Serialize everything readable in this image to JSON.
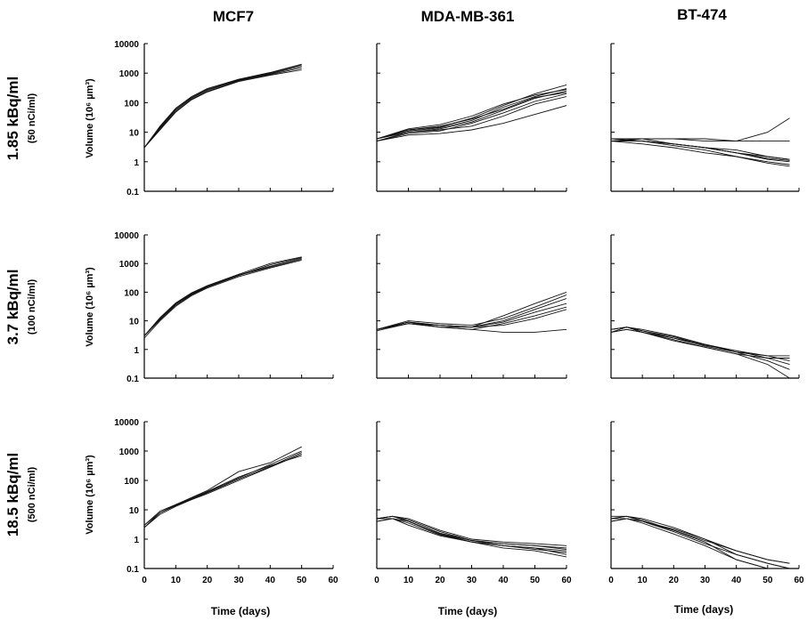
{
  "figure": {
    "columns": [
      "MCF7",
      "MDA-MB-361",
      "BT-474"
    ],
    "rows": [
      {
        "label": "1.85 kBq/ml",
        "sub": "(50 nCi/ml)"
      },
      {
        "label": "3.7 kBq/ml",
        "sub": "(100 nCi/ml)"
      },
      {
        "label": "18.5 kBq/ml",
        "sub": "(500 nCi/ml)"
      }
    ],
    "ylabel": "Volume (10⁶ µm³)",
    "xlabel": "Time (days)",
    "colors": {
      "line": "#111111",
      "axis": "#000000"
    }
  },
  "chart_data": [
    {
      "type": "line",
      "cell": "MCF7 / 1.85 kBq/ml",
      "yscale": "log",
      "ylim": [
        0.1,
        10000
      ],
      "xlim": [
        0,
        60
      ],
      "ytick_labels": [
        "0.1",
        "1",
        "10",
        "100",
        "1000",
        "10000"
      ],
      "xtick_labels": [],
      "x": [
        0,
        5,
        10,
        15,
        20,
        30,
        40,
        50
      ],
      "series": [
        {
          "values": [
            3,
            15,
            60,
            150,
            280,
            600,
            1000,
            1900
          ]
        },
        {
          "values": [
            3,
            14,
            55,
            140,
            260,
            580,
            950,
            1700
          ]
        },
        {
          "values": [
            3,
            13,
            50,
            130,
            240,
            550,
            900,
            1500
          ]
        },
        {
          "values": [
            3,
            12,
            48,
            125,
            230,
            520,
            850,
            1300
          ]
        },
        {
          "values": [
            3,
            16,
            65,
            160,
            300,
            620,
            1050,
            2000
          ]
        }
      ]
    },
    {
      "type": "line",
      "cell": "MDA-MB-361 / 1.85 kBq/ml",
      "yscale": "log",
      "ylim": [
        0.1,
        10000
      ],
      "xlim": [
        0,
        60
      ],
      "ytick_labels": [],
      "xtick_labels": [],
      "x": [
        0,
        10,
        20,
        30,
        40,
        50,
        60
      ],
      "series": [
        {
          "values": [
            6,
            12,
            15,
            30,
            80,
            200,
            400
          ]
        },
        {
          "values": [
            6,
            11,
            14,
            25,
            70,
            160,
            300
          ]
        },
        {
          "values": [
            5,
            10,
            13,
            22,
            55,
            140,
            250
          ]
        },
        {
          "values": [
            6,
            12,
            16,
            28,
            60,
            150,
            220
          ]
        },
        {
          "values": [
            5,
            9,
            11,
            20,
            45,
            110,
            200
          ]
        },
        {
          "values": [
            6,
            10,
            12,
            16,
            35,
            90,
            160
          ]
        },
        {
          "values": [
            5,
            8,
            9,
            12,
            20,
            40,
            80
          ]
        },
        {
          "values": [
            6,
            13,
            18,
            35,
            90,
            180,
            280
          ]
        }
      ]
    },
    {
      "type": "line",
      "cell": "BT-474 / 1.85 kBq/ml",
      "yscale": "log",
      "ylim": [
        0.1,
        10000
      ],
      "xlim": [
        0,
        60
      ],
      "ytick_labels": [],
      "xtick_labels": [],
      "x": [
        0,
        10,
        20,
        30,
        40,
        50,
        57
      ],
      "series": [
        {
          "values": [
            5,
            6,
            6,
            5,
            5,
            10,
            30
          ]
        },
        {
          "values": [
            5,
            6,
            6,
            6,
            5,
            5,
            5
          ]
        },
        {
          "values": [
            5,
            5,
            4,
            3,
            2,
            1.5,
            1.2
          ]
        },
        {
          "values": [
            6,
            5,
            4,
            3,
            2,
            1.2,
            1
          ]
        },
        {
          "values": [
            5,
            5,
            3.5,
            2.5,
            1.5,
            1,
            0.8
          ]
        },
        {
          "values": [
            6,
            6,
            4,
            3,
            2,
            1.3,
            1.1
          ]
        },
        {
          "values": [
            5,
            4,
            3,
            2,
            1.5,
            0.9,
            0.7
          ]
        },
        {
          "values": [
            5,
            5,
            4,
            3,
            2.5,
            1.5,
            1.2
          ]
        }
      ]
    },
    {
      "type": "line",
      "cell": "MCF7 / 3.7 kBq/ml",
      "yscale": "log",
      "ylim": [
        0.1,
        10000
      ],
      "xlim": [
        0,
        60
      ],
      "ytick_labels": [
        "0.1",
        "1",
        "10",
        "100",
        "1000",
        "10000"
      ],
      "xtick_labels": [],
      "x": [
        0,
        5,
        10,
        15,
        20,
        30,
        40,
        50
      ],
      "series": [
        {
          "values": [
            3,
            12,
            40,
            90,
            160,
            400,
            800,
            1500
          ]
        },
        {
          "values": [
            3,
            11,
            35,
            80,
            150,
            380,
            900,
            1600
          ]
        },
        {
          "values": [
            2.5,
            10,
            32,
            75,
            140,
            350,
            700,
            1300
          ]
        },
        {
          "values": [
            3,
            13,
            42,
            95,
            170,
            420,
            1000,
            1700
          ]
        },
        {
          "values": [
            3,
            11,
            38,
            85,
            155,
            390,
            750,
            1400
          ]
        }
      ]
    },
    {
      "type": "line",
      "cell": "MDA-MB-361 / 3.7 kBq/ml",
      "yscale": "log",
      "ylim": [
        0.1,
        10000
      ],
      "xlim": [
        0,
        60
      ],
      "ytick_labels": [],
      "xtick_labels": [],
      "x": [
        0,
        10,
        20,
        30,
        40,
        50,
        60
      ],
      "series": [
        {
          "values": [
            5,
            9,
            7,
            6,
            15,
            40,
            100
          ]
        },
        {
          "values": [
            5,
            10,
            8,
            7,
            12,
            30,
            80
          ]
        },
        {
          "values": [
            5,
            8,
            7,
            6,
            10,
            25,
            60
          ]
        },
        {
          "values": [
            5,
            9,
            6,
            6,
            9,
            20,
            40
          ]
        },
        {
          "values": [
            4.5,
            8,
            6,
            5,
            8,
            15,
            30
          ]
        },
        {
          "values": [
            5,
            9,
            7,
            6,
            7,
            12,
            25
          ]
        },
        {
          "values": [
            5,
            8,
            6,
            5,
            4,
            4,
            5
          ]
        }
      ]
    },
    {
      "type": "line",
      "cell": "BT-474 / 3.7 kBq/ml",
      "yscale": "log",
      "ylim": [
        0.1,
        10000
      ],
      "xlim": [
        0,
        60
      ],
      "ytick_labels": [],
      "xtick_labels": [],
      "x": [
        0,
        5,
        10,
        20,
        30,
        40,
        50,
        57
      ],
      "series": [
        {
          "values": [
            4,
            6,
            4,
            2.5,
            1.5,
            0.9,
            0.5,
            0.3
          ]
        },
        {
          "values": [
            5,
            6,
            4.5,
            2.5,
            1.3,
            0.8,
            0.4,
            0.2
          ]
        },
        {
          "values": [
            4,
            5,
            4,
            2,
            1.2,
            0.7,
            0.5,
            0.5
          ]
        },
        {
          "values": [
            5,
            6,
            5,
            3,
            1.5,
            0.8,
            0.6,
            0.4
          ]
        },
        {
          "values": [
            4,
            5,
            4,
            2.2,
            1.2,
            0.7,
            0.3,
            0.1
          ]
        },
        {
          "values": [
            5,
            6,
            4.5,
            2.8,
            1.4,
            0.9,
            0.6,
            0.6
          ]
        }
      ]
    },
    {
      "type": "line",
      "cell": "MCF7 / 18.5 kBq/ml",
      "yscale": "log",
      "ylim": [
        0.1,
        10000
      ],
      "xlim": [
        0,
        60
      ],
      "ytick_labels": [
        "0.1",
        "1",
        "10",
        "100",
        "1000",
        "10000"
      ],
      "xtick_labels": [
        "0",
        "10",
        "20",
        "30",
        "40",
        "50",
        "60"
      ],
      "x": [
        0,
        5,
        10,
        20,
        30,
        40,
        50
      ],
      "series": [
        {
          "values": [
            2.5,
            8,
            14,
            40,
            120,
            350,
            1000
          ]
        },
        {
          "values": [
            3,
            9,
            15,
            45,
            200,
            400,
            1400
          ]
        },
        {
          "values": [
            2.5,
            7,
            13,
            38,
            110,
            300,
            900
          ]
        },
        {
          "values": [
            2.5,
            8,
            14,
            35,
            100,
            280,
            800
          ]
        },
        {
          "values": [
            3,
            8,
            15,
            42,
            130,
            320,
            700
          ]
        }
      ]
    },
    {
      "type": "line",
      "cell": "MDA-MB-361 / 18.5 kBq/ml",
      "yscale": "log",
      "ylim": [
        0.1,
        10000
      ],
      "xlim": [
        0,
        60
      ],
      "ytick_labels": [],
      "xtick_labels": [
        "0",
        "10",
        "20",
        "30",
        "40",
        "50",
        "60"
      ],
      "x": [
        0,
        5,
        10,
        20,
        30,
        40,
        50,
        60
      ],
      "series": [
        {
          "values": [
            5,
            6,
            4,
            1.5,
            0.9,
            0.7,
            0.6,
            0.5
          ]
        },
        {
          "values": [
            5,
            6,
            4,
            1.5,
            0.8,
            0.6,
            0.5,
            0.3
          ]
        },
        {
          "values": [
            4,
            5,
            3,
            1.3,
            0.8,
            0.5,
            0.4,
            0.25
          ]
        },
        {
          "values": [
            5,
            6,
            5,
            2,
            1,
            0.8,
            0.7,
            0.6
          ]
        },
        {
          "values": [
            5,
            5,
            4,
            1.6,
            0.9,
            0.6,
            0.5,
            0.4
          ]
        },
        {
          "values": [
            4,
            5,
            3.5,
            1.4,
            0.8,
            0.6,
            0.45,
            0.35
          ]
        },
        {
          "values": [
            5,
            6,
            4.5,
            1.8,
            0.9,
            0.7,
            0.6,
            0.45
          ]
        }
      ]
    },
    {
      "type": "line",
      "cell": "BT-474 / 18.5 kBq/ml",
      "yscale": "log",
      "ylim": [
        0.1,
        10000
      ],
      "xlim": [
        0,
        60
      ],
      "ytick_labels": [],
      "xtick_labels": [
        "0",
        "10",
        "20",
        "30",
        "40",
        "50",
        "60"
      ],
      "x": [
        0,
        5,
        10,
        20,
        30,
        40,
        50,
        57
      ],
      "series": [
        {
          "values": [
            5,
            6,
            4.5,
            2,
            0.9,
            0.4,
            0.2,
            0.15
          ]
        },
        {
          "values": [
            6,
            6,
            5,
            2.5,
            1,
            0.3,
            0.15,
            0.1
          ]
        },
        {
          "values": [
            4,
            5,
            4,
            1.8,
            0.7,
            0.3,
            0.15,
            0.1
          ]
        },
        {
          "values": [
            5,
            6,
            4,
            2,
            0.8,
            0.2,
            0.1,
            0.1
          ]
        },
        {
          "values": [
            5,
            5,
            4,
            2.2,
            1,
            0.4,
            0.2,
            0.15
          ]
        },
        {
          "values": [
            4,
            5,
            3.5,
            1.5,
            0.6,
            0.2,
            0.1,
            0.1
          ]
        }
      ]
    }
  ]
}
